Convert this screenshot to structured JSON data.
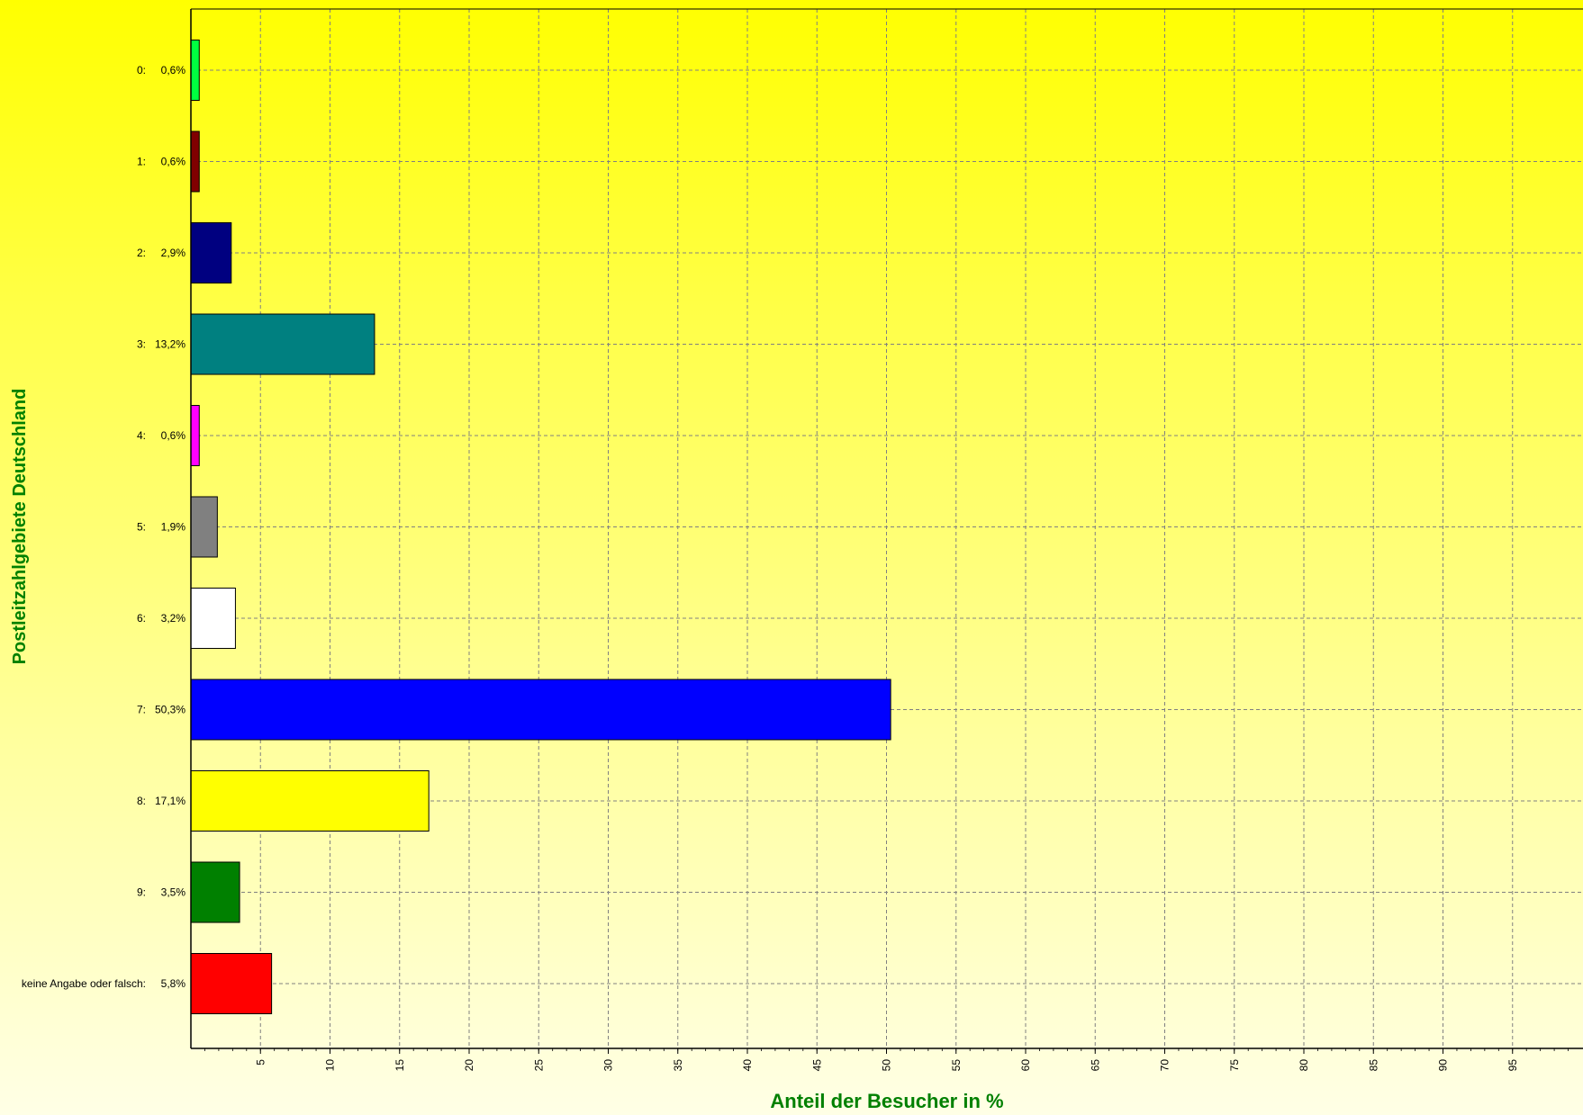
{
  "chart_data": {
    "type": "bar",
    "orientation": "horizontal",
    "categories": [
      "0:",
      "1:",
      "2:",
      "3:",
      "4:",
      "5:",
      "6:",
      "7:",
      "8:",
      "9:",
      "keine Angabe oder falsch:"
    ],
    "value_labels": [
      "0,6%",
      "0,6%",
      "2,9%",
      "13,2%",
      "0,6%",
      "1,9%",
      "3,2%",
      "50,3%",
      "17,1%",
      "3,5%",
      "5,8%"
    ],
    "values": [
      0.6,
      0.6,
      2.9,
      13.2,
      0.6,
      1.9,
      3.2,
      50.3,
      17.1,
      3.5,
      5.8
    ],
    "bar_colors": [
      "#00ff40",
      "#800000",
      "#000080",
      "#008080",
      "#ff00ff",
      "#808080",
      "#ffffff",
      "#0000ff",
      "#ffff00",
      "#008000",
      "#ff0000"
    ],
    "xlabel": "Anteil der Besucher in %",
    "ylabel": "Postleitzahlgebiete Deutschland",
    "xlim": [
      0,
      100
    ],
    "xticks": [
      5,
      10,
      15,
      20,
      25,
      30,
      35,
      40,
      45,
      50,
      55,
      60,
      65,
      70,
      75,
      80,
      85,
      90,
      95
    ],
    "grid": true,
    "title_color": "#008000",
    "background": "yellow gradient"
  }
}
